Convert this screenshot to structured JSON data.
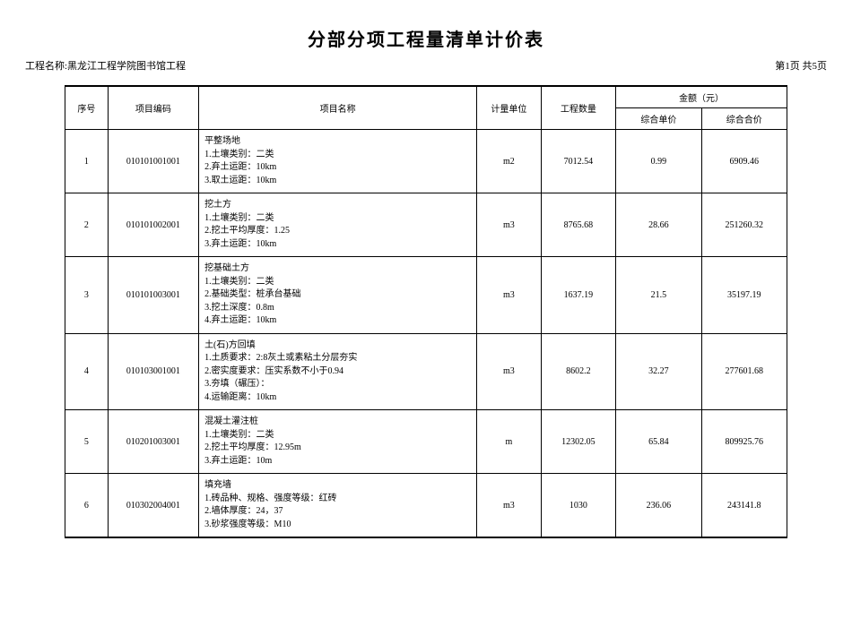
{
  "title": "分部分项工程量清单计价表",
  "project_label": "工程名称:黑龙江工程学院图书馆工程",
  "page_info": "第1页 共5页",
  "headers": {
    "seq": "序号",
    "code": "项目编码",
    "name": "项目名称",
    "unit": "计量单位",
    "qty": "工程数量",
    "amount": "金额（元）",
    "unit_price": "综合单价",
    "total_price": "综合合价"
  },
  "rows": [
    {
      "seq": "1",
      "code": "010101001001",
      "name": "平整场地\n  1.土壤类别：二类\n  2.弃土运距：10km\n  3.取土运距：10km",
      "unit": "m2",
      "qty": "7012.54",
      "unit_price": "0.99",
      "total_price": "6909.46"
    },
    {
      "seq": "2",
      "code": "010101002001",
      "name": "挖土方\n  1.土壤类别：二类\n  2.挖土平均厚度：1.25\n  3.弃土运距：10km",
      "unit": "m3",
      "qty": "8765.68",
      "unit_price": "28.66",
      "total_price": "251260.32"
    },
    {
      "seq": "3",
      "code": "010101003001",
      "name": "挖基础土方\n  1.土壤类别：二类\n  2.基础类型：桩承台基础\n  3.挖土深度：0.8m\n  4.弃土运距：10km",
      "unit": "m3",
      "qty": "1637.19",
      "unit_price": "21.5",
      "total_price": "35197.19"
    },
    {
      "seq": "4",
      "code": "010103001001",
      "name": "土(石)方回填\n  1.土质要求：2:8灰土或素粘土分层夯实\n  2.密实度要求：压实系数不小于0.94\n  3.夯填（碾压）：\n  4.运输距离：10km",
      "unit": "m3",
      "qty": "8602.2",
      "unit_price": "32.27",
      "total_price": "277601.68"
    },
    {
      "seq": "5",
      "code": "010201003001",
      "name": "混凝土灌注桩\n  1.土壤类别：二类\n  2.挖土平均厚度：12.95m\n  3.弃土运距：10m",
      "unit": "m",
      "qty": "12302.05",
      "unit_price": "65.84",
      "total_price": "809925.76"
    },
    {
      "seq": "6",
      "code": "010302004001",
      "name": "填充墙\n  1.砖品种、规格、强度等级：红砖\n  2.墙体厚度：24，37\n  3.砂浆强度等级：M10",
      "unit": "m3",
      "qty": "1030",
      "unit_price": "236.06",
      "total_price": "243141.8"
    }
  ]
}
